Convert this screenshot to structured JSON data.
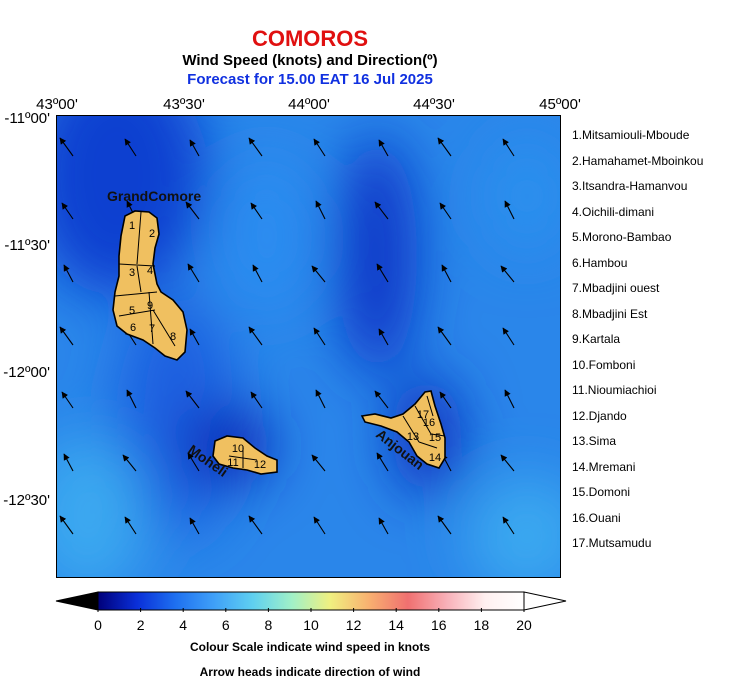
{
  "header": {
    "title": "COMOROS",
    "subtitle": "Wind Speed (knots) and Direction(º)",
    "forecast": "Forecast for  15.00 EAT 16 Jul 2025"
  },
  "axes": {
    "lon_labels": [
      "43º00'",
      "43º30'",
      "44º00'",
      "44º30'",
      "45º00'"
    ],
    "lat_labels": [
      "-11º00'",
      "-11º30'",
      "-12º00'",
      "-12º30'"
    ]
  },
  "places": {
    "grand_comore": "GrandComore",
    "moheli": "Moheli",
    "anjouan": "Anjouan"
  },
  "region_numbers": [
    "1",
    "2",
    "3",
    "4",
    "5",
    "6",
    "7",
    "8",
    "9",
    "10",
    "11",
    "12",
    "13",
    "14",
    "15",
    "16",
    "17"
  ],
  "legend": [
    "1.Mitsamiouli-Mboude",
    "2.Hamahamet-Mboinkou",
    "3.Itsandra-Hamanvou",
    "4.Oichili-dimani",
    "5.Morono-Bambao",
    "6.Hambou",
    "7.Mbadjini ouest",
    "8.Mbadjini Est",
    "9.Kartala",
    "10.Fomboni",
    "11.Nioumiachioi",
    "12.Djando",
    "13.Sima",
    "14.Mremani",
    "15.Domoni",
    "16.Ouani",
    "17.Mutsamudu"
  ],
  "colorbar": {
    "ticks": [
      "0",
      "2",
      "4",
      "6",
      "8",
      "10",
      "12",
      "14",
      "16",
      "18",
      "20"
    ],
    "stops": [
      "#00007a",
      "#0a2fd8",
      "#1e70f0",
      "#3fa0f8",
      "#5fd0f0",
      "#a0f0c8",
      "#f0f080",
      "#f8b070",
      "#f07070",
      "#f8b0b8",
      "#fff0f0",
      "#ffffff"
    ],
    "note1": "Colour Scale indicate wind speed in knots",
    "note2": "Arrow heads indicate direction of wind"
  },
  "colors": {
    "land": "#f0c060",
    "title_red": "#e01010",
    "forecast_blue": "#1030e0"
  }
}
